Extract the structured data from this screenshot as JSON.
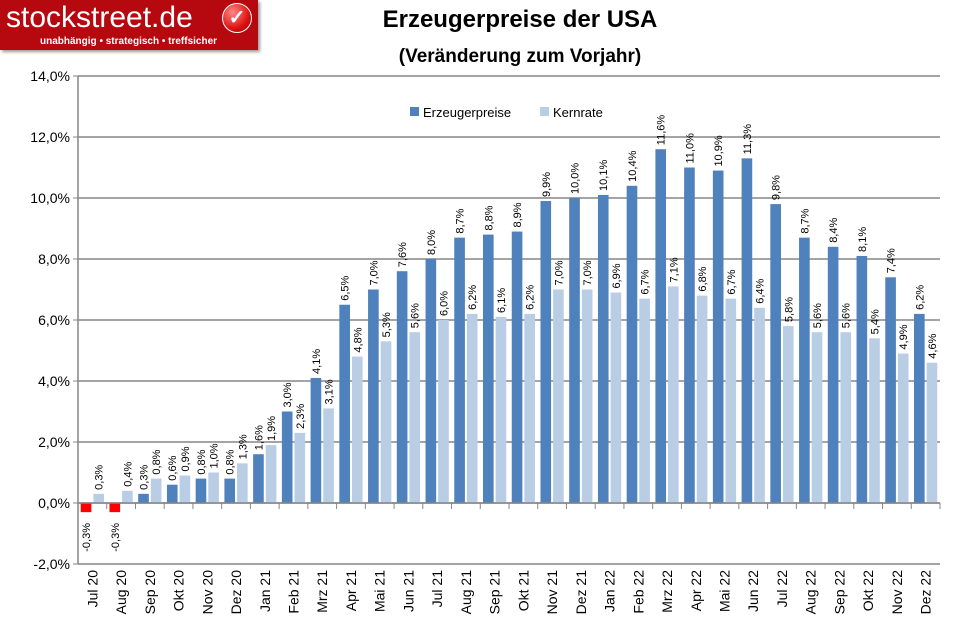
{
  "logo": {
    "brand": "stockstreet.de",
    "tagline": "unabhängig • strategisch • treffsicher"
  },
  "chart_data": {
    "type": "bar",
    "title": "Erzeugerpreise der USA",
    "subtitle": "(Veränderung zum Vorjahr)",
    "categories": [
      "Jul 20",
      "Aug 20",
      "Sep 20",
      "Okt 20",
      "Nov 20",
      "Dez 20",
      "Jan 21",
      "Feb 21",
      "Mrz 21",
      "Apr 21",
      "Mai 21",
      "Jun 21",
      "Jul 21",
      "Aug 21",
      "Sep 21",
      "Okt 21",
      "Nov 21",
      "Dez 21",
      "Jan 22",
      "Feb 22",
      "Mrz 22",
      "Apr 22",
      "Mai 22",
      "Jun 22",
      "Jul 22",
      "Aug 22",
      "Sep 22",
      "Okt 22",
      "Nov 22",
      "Dez 22"
    ],
    "series": [
      {
        "name": "Erzeugerpreise",
        "color": "#4f81bd",
        "negative_color": "#ff0000",
        "values": [
          -0.3,
          -0.3,
          0.3,
          0.6,
          0.8,
          0.8,
          1.6,
          3.0,
          4.1,
          6.5,
          7.0,
          7.6,
          8.0,
          8.7,
          8.8,
          8.9,
          9.9,
          10.0,
          10.1,
          10.4,
          11.6,
          11.0,
          10.9,
          11.3,
          9.8,
          8.7,
          8.4,
          8.1,
          7.4,
          6.2
        ]
      },
      {
        "name": "Kernrate",
        "color": "#b9cde5",
        "values": [
          0.3,
          0.4,
          0.8,
          0.9,
          1.0,
          1.3,
          1.9,
          2.3,
          3.1,
          4.8,
          5.3,
          5.6,
          6.0,
          6.2,
          6.1,
          6.2,
          7.0,
          7.0,
          6.9,
          6.7,
          7.1,
          6.8,
          6.7,
          6.4,
          5.8,
          5.6,
          5.6,
          5.4,
          4.9,
          4.6
        ]
      }
    ],
    "ylim": [
      -2,
      14
    ],
    "yticks": [
      -2,
      0,
      2,
      4,
      6,
      8,
      10,
      12,
      14
    ],
    "ytick_format": "percent, 1 decimal, comma",
    "grid": true,
    "legend": "top-center",
    "data_labels": true
  }
}
